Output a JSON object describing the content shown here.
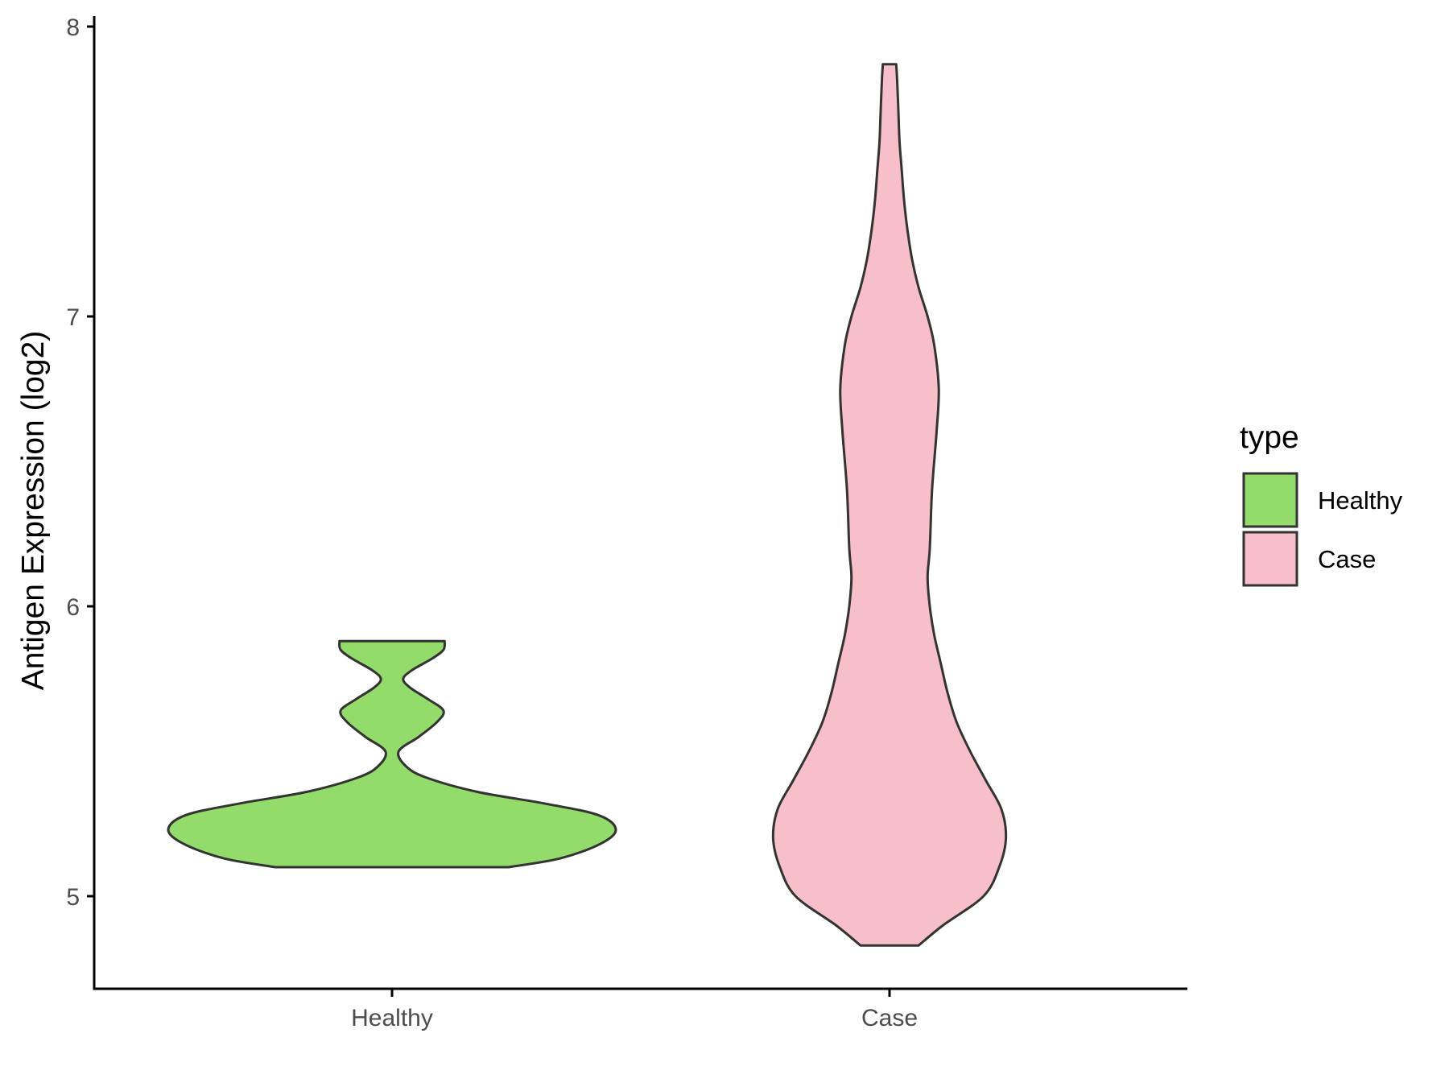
{
  "chart_data": {
    "type": "violin",
    "title": "",
    "xlabel": "",
    "ylabel": "Antigen Expression (log2)",
    "ylim": [
      4.67,
      8.03
    ],
    "y_ticks": [
      "5",
      "6",
      "7",
      "8"
    ],
    "y_tick_values": [
      5,
      6,
      7,
      8
    ],
    "categories": [
      "Healthy",
      "Case"
    ],
    "legend": {
      "title": "type",
      "position": "right",
      "entries": [
        "Healthy",
        "Case"
      ]
    },
    "grid": false,
    "series": [
      {
        "name": "Healthy",
        "color": "#93DB6A",
        "range": [
          5.1,
          5.88
        ],
        "density_profile": [
          [
            5.1,
            0.52
          ],
          [
            5.13,
            0.75
          ],
          [
            5.18,
            0.93
          ],
          [
            5.23,
            1.0
          ],
          [
            5.28,
            0.92
          ],
          [
            5.32,
            0.68
          ],
          [
            5.36,
            0.38
          ],
          [
            5.41,
            0.15
          ],
          [
            5.45,
            0.06
          ],
          [
            5.5,
            0.03
          ],
          [
            5.55,
            0.12
          ],
          [
            5.6,
            0.2
          ],
          [
            5.64,
            0.23
          ],
          [
            5.68,
            0.16
          ],
          [
            5.72,
            0.08
          ],
          [
            5.75,
            0.05
          ],
          [
            5.78,
            0.09
          ],
          [
            5.82,
            0.18
          ],
          [
            5.85,
            0.23
          ],
          [
            5.88,
            0.235
          ]
        ]
      },
      {
        "name": "Case",
        "color": "#F7BFCA",
        "range": [
          4.83,
          7.87
        ],
        "density_profile": [
          [
            4.83,
            0.13
          ],
          [
            4.9,
            0.24
          ],
          [
            5.0,
            0.42
          ],
          [
            5.1,
            0.49
          ],
          [
            5.2,
            0.52
          ],
          [
            5.3,
            0.5
          ],
          [
            5.4,
            0.43
          ],
          [
            5.5,
            0.36
          ],
          [
            5.6,
            0.3
          ],
          [
            5.7,
            0.26
          ],
          [
            5.8,
            0.23
          ],
          [
            5.9,
            0.2
          ],
          [
            6.0,
            0.18
          ],
          [
            6.1,
            0.17
          ],
          [
            6.2,
            0.18
          ],
          [
            6.4,
            0.19
          ],
          [
            6.6,
            0.21
          ],
          [
            6.75,
            0.22
          ],
          [
            6.9,
            0.2
          ],
          [
            7.0,
            0.17
          ],
          [
            7.1,
            0.13
          ],
          [
            7.2,
            0.1
          ],
          [
            7.3,
            0.08
          ],
          [
            7.4,
            0.065
          ],
          [
            7.5,
            0.055
          ],
          [
            7.6,
            0.045
          ],
          [
            7.7,
            0.04
          ],
          [
            7.8,
            0.035
          ],
          [
            7.87,
            0.03
          ]
        ]
      }
    ]
  }
}
